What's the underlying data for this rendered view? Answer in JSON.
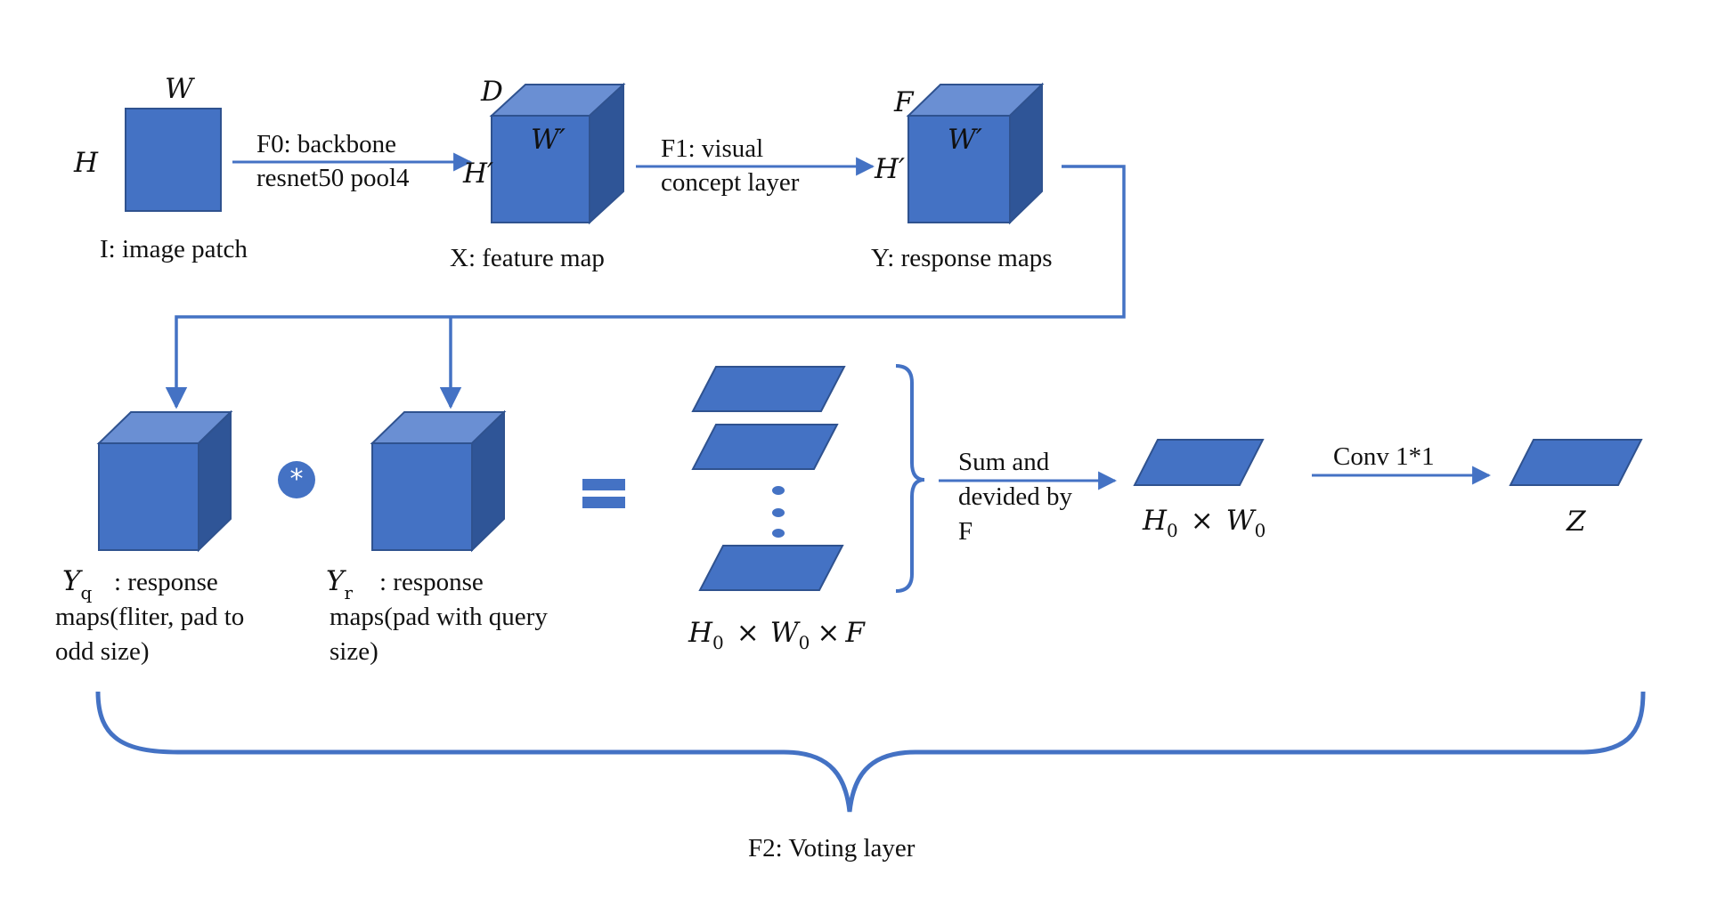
{
  "colors": {
    "face": "#4472C4",
    "top": "#6A8FD3",
    "side": "#2F5597",
    "edge": "#2F528F",
    "line": "#4472C4"
  },
  "row1": {
    "image": {
      "w": "W",
      "h": "H",
      "caption": "I: image patch"
    },
    "arrow0": {
      "line1": "F0: backbone",
      "line2": "resnet50 pool4"
    },
    "feature": {
      "d": "D",
      "w": "W′",
      "h": "H′",
      "caption": "X: feature map"
    },
    "arrow1": {
      "line1": "F1: visual",
      "line2": "concept layer"
    },
    "response": {
      "f": "F",
      "w": "W′",
      "h": "H′",
      "caption": "Y: response maps"
    }
  },
  "row2": {
    "yq": {
      "symbol": "Y",
      "sub": "q",
      "line1": ": response",
      "line2": "maps(fliter, pad to",
      "line3": "odd size)"
    },
    "conv_symbol": "*",
    "yr": {
      "symbol": "Y",
      "sub": "r",
      "line1": ": response",
      "line2": "maps(pad with query",
      "line3": "size)"
    },
    "stack_caption": {
      "h": "H",
      "h_sub": "0",
      "times1": "×",
      "w": "W",
      "w_sub": "0",
      "times2": "×",
      "f": "F"
    },
    "sum": {
      "line1": "Sum and",
      "line2": "devided by",
      "line3": "F"
    },
    "hw": {
      "h": "H",
      "h_sub": "0",
      "times": "×",
      "w": "W",
      "w_sub": "0"
    },
    "conv": {
      "label": "Conv 1*1"
    },
    "z": "Z"
  },
  "voting": "F2: Voting layer"
}
